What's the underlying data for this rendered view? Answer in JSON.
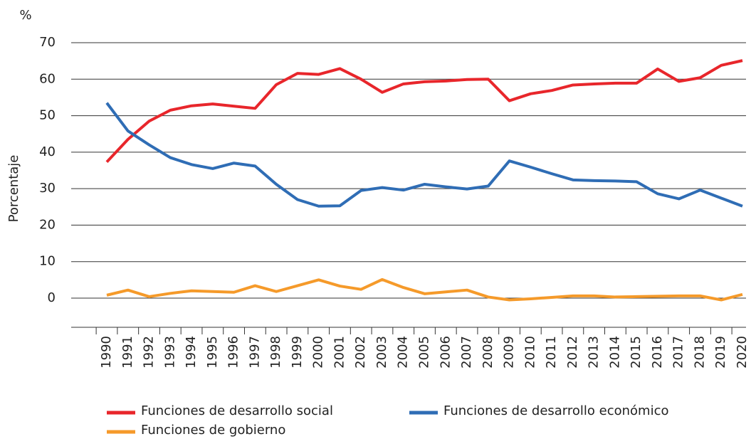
{
  "chart_data": {
    "type": "line",
    "y_unit": "%",
    "ylabel": "Porcentaje",
    "categories": [
      "1990",
      "1991",
      "1992",
      "1993",
      "1994",
      "1995",
      "1996",
      "1997",
      "1998",
      "1999",
      "2000",
      "2001",
      "2002",
      "2003",
      "2004",
      "2005",
      "2006",
      "2007",
      "2008",
      "2009",
      "2010",
      "2011",
      "2012",
      "2013",
      "2014",
      "2015",
      "2016",
      "2017",
      "2018",
      "2019",
      "2020"
    ],
    "series": [
      {
        "name": "Funciones de desarrollo social",
        "color": "#e8262b",
        "values": [
          37.3,
          43.5,
          48.5,
          51.5,
          52.7,
          53.2,
          52.6,
          52.0,
          58.5,
          61.6,
          61.3,
          62.9,
          60.0,
          56.4,
          58.7,
          59.3,
          59.5,
          59.9,
          60.0,
          54.1,
          56.0,
          56.9,
          58.4,
          58.7,
          58.9,
          58.9,
          62.8,
          59.4,
          60.4,
          63.8,
          65.1
        ]
      },
      {
        "name": "Funciones de desarrollo económico",
        "color": "#2f6db5",
        "values": [
          53.5,
          45.8,
          42.0,
          38.5,
          36.6,
          35.5,
          37.0,
          36.2,
          31.2,
          27.0,
          25.2,
          25.3,
          29.5,
          30.3,
          29.6,
          31.2,
          30.5,
          29.9,
          30.7,
          37.6,
          35.9,
          34.1,
          32.4,
          32.2,
          32.1,
          31.9,
          28.6,
          27.2,
          29.6,
          27.4,
          25.2
        ]
      },
      {
        "name": "Funciones de gobierno",
        "color": "#f59a2a",
        "values": [
          0.8,
          2.2,
          0.4,
          1.3,
          2.0,
          1.8,
          1.6,
          3.4,
          1.8,
          3.4,
          5.0,
          3.3,
          2.4,
          5.1,
          2.9,
          1.2,
          1.7,
          2.2,
          0.3,
          -0.5,
          -0.2,
          0.2,
          0.6,
          0.6,
          0.3,
          0.4,
          0.5,
          0.6,
          0.6,
          -0.5,
          1.0
        ]
      }
    ],
    "ylim": [
      -8,
      70
    ],
    "yticks": [
      0,
      10,
      20,
      30,
      40,
      50,
      60,
      70
    ],
    "grid": true
  }
}
